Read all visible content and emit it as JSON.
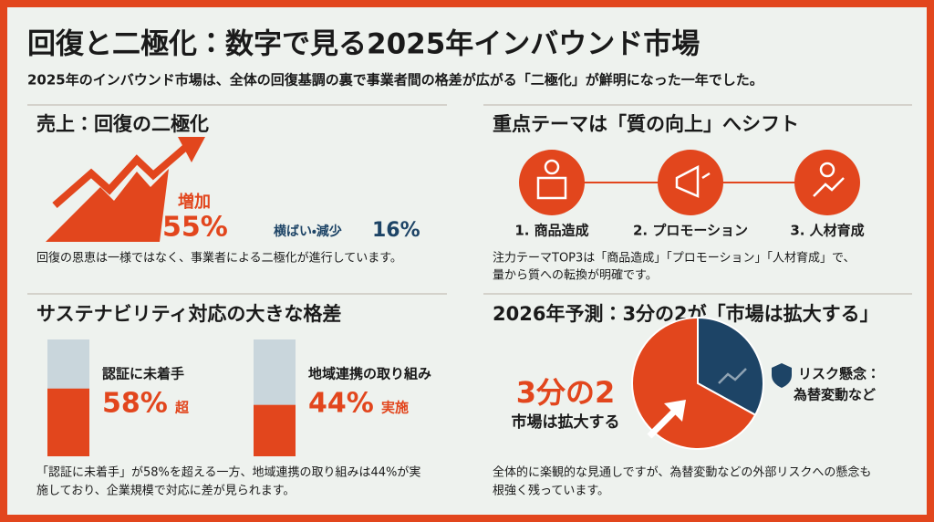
{
  "header": {
    "title": "回復と二極化：数字で見る2025年インバウンド市場",
    "subtitle": "2025年のインバウンド市場は、全体の回復基調の裏で事業者間の格差が広がる「二極化」が鮮明になった一年でした。"
  },
  "sales": {
    "heading": "売上：回復の二極化",
    "increase_label": "増加",
    "increase_value": "55%",
    "flat_label": "横ばい・減少",
    "flat_value": "16%",
    "caption": "回復の恩恵は一様ではなく、事業者による二極化が進行しています。"
  },
  "themes": {
    "heading": "重点テーマは「質の向上」へシフト",
    "items": [
      "1. 商品造成",
      "2. プロモーション",
      "3. 人材育成"
    ],
    "caption": [
      "注力テーマTOP3は「商品造成」「プロモーション」「人材育成」で、",
      "量から質への転換が明確です。"
    ]
  },
  "sustainability": {
    "heading": "サステナビリティ対応の大きな格差",
    "bars": [
      {
        "label": "認証に未着手",
        "value": 58,
        "value_label": "58%",
        "suffix": "超"
      },
      {
        "label": "地域連携の取り組み",
        "value": 44,
        "value_label": "44%",
        "suffix": "実施"
      }
    ],
    "caption": [
      "「認証に未着手」が58%を超える一方、地域連携の取り組みは44%が実",
      "施しており、企業規模で対応に差が見られます。"
    ]
  },
  "forecast": {
    "heading": "2026年予測：3分の2が「市場は拡大する」",
    "share_label": "3分の2",
    "share_text": "市場は拡大する",
    "risk_title": "リスク懸念：",
    "risk_text": "為替変動など",
    "caption": [
      "全体的に楽観的な見通しですが、為替変動などの外部リスクへの懸念も",
      "根強く残っています。"
    ],
    "chart": {
      "type": "pie",
      "values": [
        67,
        33
      ],
      "colors": [
        "#e2461d",
        "#1d4466"
      ]
    }
  }
}
